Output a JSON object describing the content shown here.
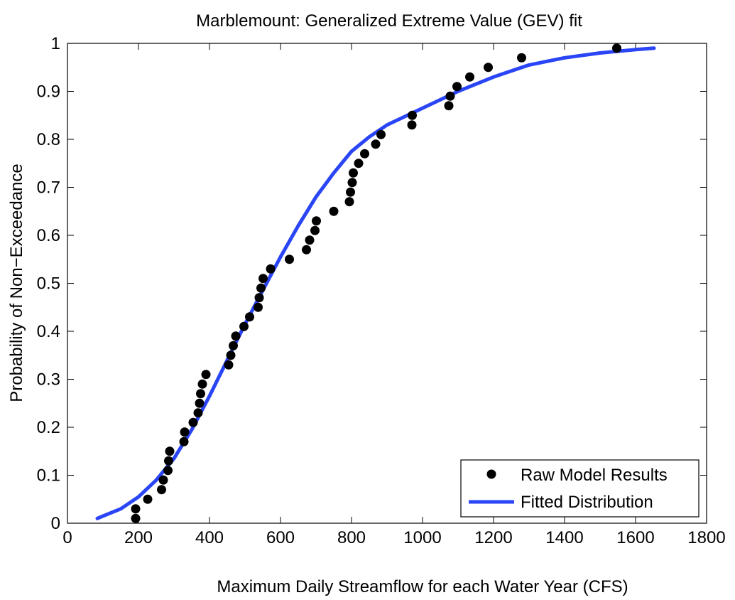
{
  "chart_data": {
    "type": "scatter",
    "title": "Marblemount: Generalized Extreme Value (GEV) fit",
    "xlabel": "Maximum Daily Streamflow for each Water Year (CFS)",
    "ylabel": "Probability of Non−Exceedance",
    "xlim": [
      0,
      1800
    ],
    "ylim": [
      0,
      1
    ],
    "xticks": [
      0,
      200,
      400,
      600,
      800,
      1000,
      1200,
      1400,
      1600,
      1800
    ],
    "yticks": [
      0,
      0.1,
      0.2,
      0.3,
      0.4,
      0.5,
      0.6,
      0.7,
      0.8,
      0.9,
      1
    ],
    "xtick_labels": [
      "0",
      "200",
      "400",
      "600",
      "800",
      "1000",
      "1200",
      "1400",
      "1600",
      "1800"
    ],
    "ytick_labels": [
      "0",
      "0.1",
      "0.2",
      "0.3",
      "0.4",
      "0.5",
      "0.6",
      "0.7",
      "0.8",
      "0.9",
      "1"
    ],
    "legend_position": "bottom-right",
    "grid": false,
    "series": [
      {
        "name": "Raw Model Results",
        "kind": "scatter",
        "color": "#000000",
        "points": [
          [
            192,
            0.01
          ],
          [
            192,
            0.03
          ],
          [
            226,
            0.05
          ],
          [
            265,
            0.07
          ],
          [
            270,
            0.09
          ],
          [
            283,
            0.11
          ],
          [
            285,
            0.13
          ],
          [
            288,
            0.15
          ],
          [
            328,
            0.17
          ],
          [
            330,
            0.19
          ],
          [
            354,
            0.21
          ],
          [
            368,
            0.23
          ],
          [
            372,
            0.25
          ],
          [
            375,
            0.27
          ],
          [
            380,
            0.29
          ],
          [
            390,
            0.31
          ],
          [
            454,
            0.33
          ],
          [
            460,
            0.35
          ],
          [
            467,
            0.37
          ],
          [
            474,
            0.39
          ],
          [
            497,
            0.41
          ],
          [
            513,
            0.43
          ],
          [
            537,
            0.45
          ],
          [
            540,
            0.47
          ],
          [
            545,
            0.49
          ],
          [
            551,
            0.51
          ],
          [
            572,
            0.53
          ],
          [
            625,
            0.55
          ],
          [
            673,
            0.57
          ],
          [
            682,
            0.59
          ],
          [
            697,
            0.61
          ],
          [
            701,
            0.63
          ],
          [
            750,
            0.65
          ],
          [
            794,
            0.67
          ],
          [
            797,
            0.69
          ],
          [
            802,
            0.71
          ],
          [
            805,
            0.73
          ],
          [
            820,
            0.75
          ],
          [
            837,
            0.77
          ],
          [
            868,
            0.79
          ],
          [
            883,
            0.81
          ],
          [
            970,
            0.83
          ],
          [
            971,
            0.85
          ],
          [
            1074,
            0.87
          ],
          [
            1078,
            0.89
          ],
          [
            1097,
            0.91
          ],
          [
            1133,
            0.93
          ],
          [
            1185,
            0.95
          ],
          [
            1279,
            0.97
          ],
          [
            1547,
            0.99
          ]
        ]
      },
      {
        "name": "Fitted Distribution",
        "kind": "line",
        "color": "#2a45f6",
        "points": [
          [
            84,
            0.01
          ],
          [
            100,
            0.015
          ],
          [
            150,
            0.03
          ],
          [
            200,
            0.055
          ],
          [
            250,
            0.09
          ],
          [
            300,
            0.135
          ],
          [
            350,
            0.195
          ],
          [
            400,
            0.265
          ],
          [
            450,
            0.34
          ],
          [
            500,
            0.415
          ],
          [
            550,
            0.485
          ],
          [
            600,
            0.555
          ],
          [
            650,
            0.62
          ],
          [
            700,
            0.68
          ],
          [
            750,
            0.73
          ],
          [
            800,
            0.775
          ],
          [
            850,
            0.805
          ],
          [
            900,
            0.83
          ],
          [
            1000,
            0.865
          ],
          [
            1100,
            0.9
          ],
          [
            1200,
            0.93
          ],
          [
            1300,
            0.955
          ],
          [
            1400,
            0.97
          ],
          [
            1500,
            0.98
          ],
          [
            1600,
            0.987
          ],
          [
            1652,
            0.99
          ]
        ]
      }
    ]
  }
}
